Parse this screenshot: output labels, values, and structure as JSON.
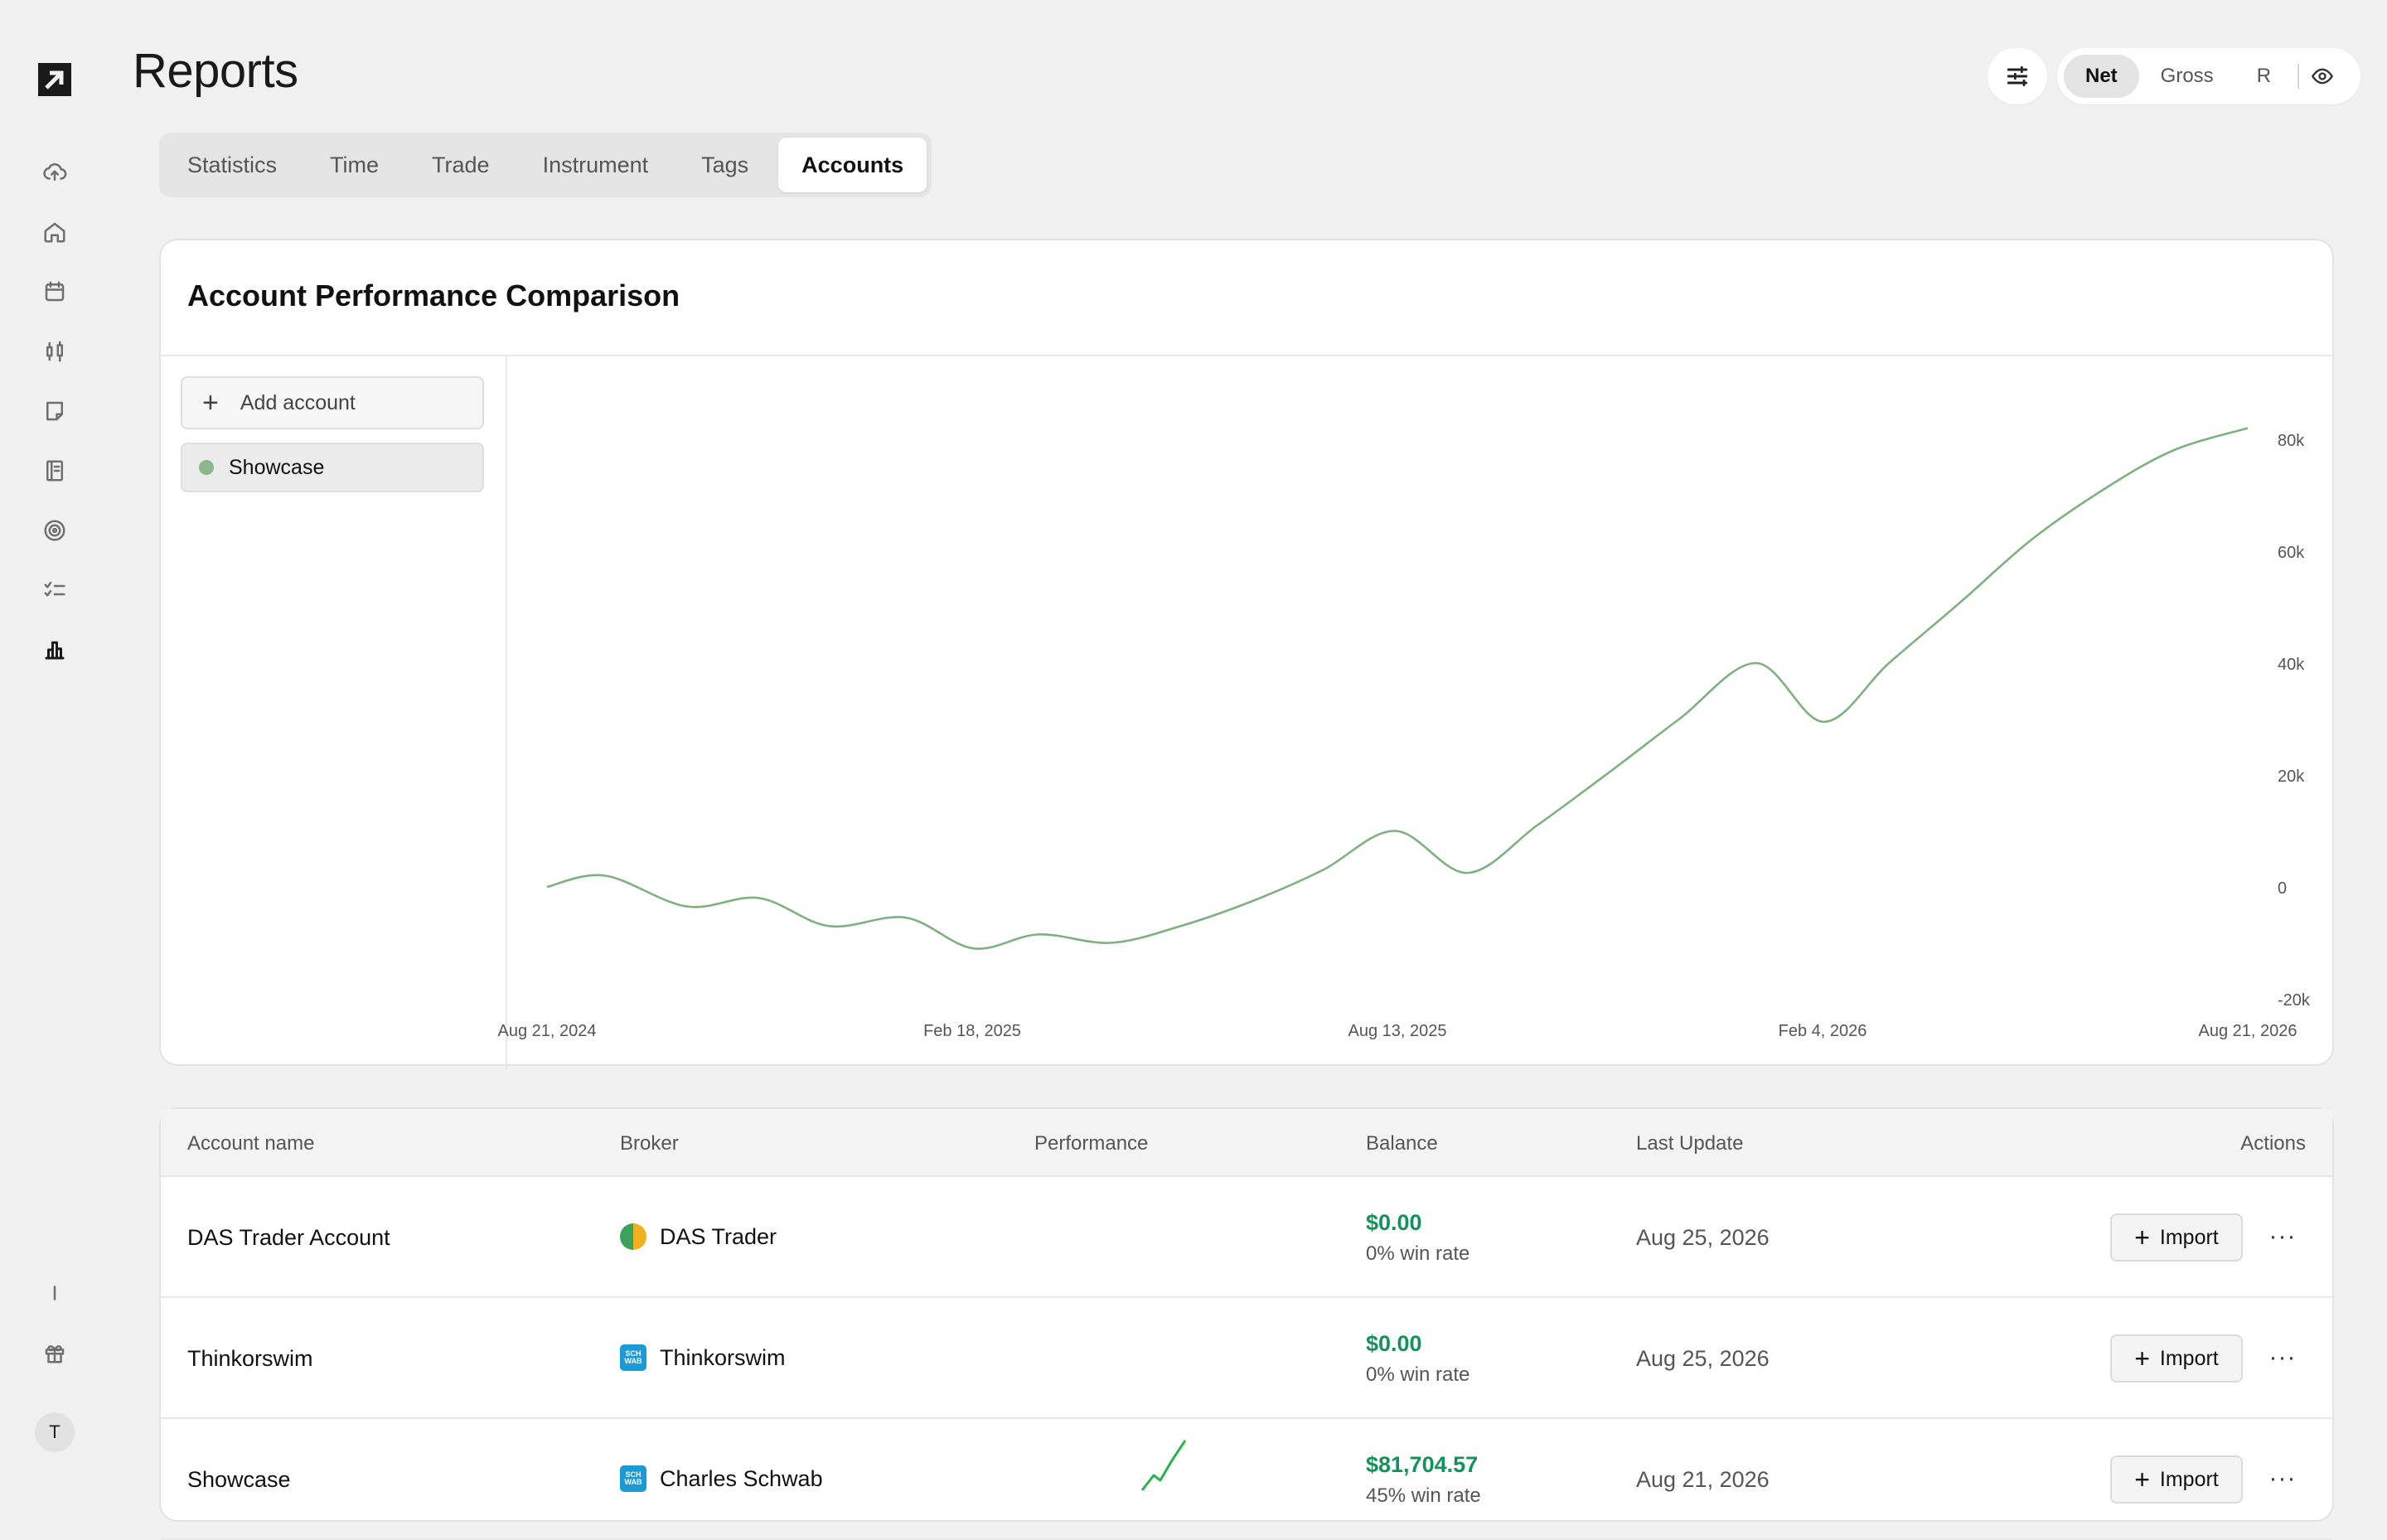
{
  "header": {
    "title": "Reports"
  },
  "view_toggle": {
    "options": [
      "Net",
      "Gross",
      "R"
    ],
    "selected": "Net"
  },
  "tabs": [
    {
      "label": "Statistics"
    },
    {
      "label": "Time"
    },
    {
      "label": "Trade"
    },
    {
      "label": "Instrument"
    },
    {
      "label": "Tags"
    },
    {
      "label": "Accounts",
      "active": true
    }
  ],
  "sidebar": {
    "icons": [
      "logo-icon",
      "cloud-upload-icon",
      "home-icon",
      "calendar-icon",
      "candlestick-icon",
      "note-icon",
      "notebook-icon",
      "target-icon",
      "checklist-icon",
      "bar-chart-icon",
      "divider-icon",
      "gift-icon"
    ],
    "avatar_initial": "T"
  },
  "comparison": {
    "title": "Account Performance Comparison",
    "add_account_label": "Add account",
    "accounts": [
      {
        "name": "Showcase",
        "color": "#8cb78d"
      }
    ]
  },
  "chart_data": {
    "type": "line",
    "series": [
      {
        "name": "Showcase",
        "color": "#7fb07f",
        "x": [
          "2024-08-21",
          "2024-09-15",
          "2024-10-20",
          "2024-11-20",
          "2024-12-20",
          "2025-01-22",
          "2025-02-20",
          "2025-03-20",
          "2025-04-20",
          "2025-05-20",
          "2025-06-20",
          "2025-07-20",
          "2025-08-20",
          "2025-09-20",
          "2025-10-20",
          "2025-11-20",
          "2025-12-20",
          "2026-01-22",
          "2026-02-20",
          "2026-03-20",
          "2026-04-20",
          "2026-05-20",
          "2026-06-20",
          "2026-07-20",
          "2026-08-21"
        ],
        "y": [
          0,
          2000,
          -3500,
          -2000,
          -7000,
          -5500,
          -11000,
          -8500,
          -10000,
          -7000,
          -2500,
          3000,
          10000,
          2500,
          11000,
          20500,
          30000,
          40000,
          29500,
          40000,
          51000,
          62000,
          71000,
          78000,
          82000
        ]
      }
    ],
    "x_ticks": [
      "Aug 21, 2024",
      "Feb 18, 2025",
      "Aug 13, 2025",
      "Feb 4, 2026",
      "Aug 21, 2026"
    ],
    "y_ticks": [
      "80k",
      "60k",
      "40k",
      "20k",
      "0",
      "-20k"
    ],
    "ylim": [
      -20000,
      80000
    ],
    "grid": false,
    "legend": "left-panel"
  },
  "table": {
    "columns": [
      "Account name",
      "Broker",
      "Performance",
      "Balance",
      "Last Update",
      "Actions"
    ],
    "import_label": "Import",
    "rows": [
      {
        "name": "DAS Trader Account",
        "broker": "DAS Trader",
        "broker_logo": "das",
        "balance": "$0.00",
        "win_rate": "0% win rate",
        "last_update": "Aug 25, 2026",
        "sparkline": false
      },
      {
        "name": "Thinkorswim",
        "broker": "Thinkorswim",
        "broker_logo": "schwab",
        "balance": "$0.00",
        "win_rate": "0% win rate",
        "last_update": "Aug 25, 2026",
        "sparkline": false
      },
      {
        "name": "Showcase",
        "broker": "Charles Schwab",
        "broker_logo": "schwab",
        "balance": "$81,704.57",
        "win_rate": "45% win rate",
        "last_update": "Aug 21, 2026",
        "sparkline": true
      }
    ]
  }
}
